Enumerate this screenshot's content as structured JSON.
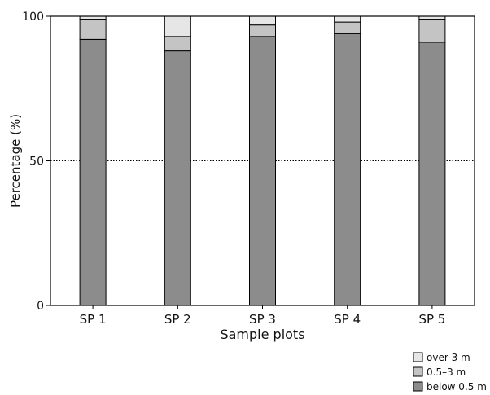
{
  "chart_data": {
    "type": "bar",
    "stacked": true,
    "categories": [
      "SP 1",
      "SP 2",
      "SP 3",
      "SP 4",
      "SP 5"
    ],
    "series": [
      {
        "name": "below 0.5 m",
        "values": [
          92,
          88,
          93,
          94,
          91
        ],
        "color": "#8c8c8c"
      },
      {
        "name": "0.5–3 m",
        "values": [
          7,
          5,
          4,
          4,
          8
        ],
        "color": "#c4c4c4"
      },
      {
        "name": "over 3 m",
        "values": [
          1,
          7,
          3,
          2,
          1
        ],
        "color": "#e6e6e6"
      }
    ],
    "ylim": [
      0,
      100
    ],
    "yticks": [
      "0",
      "50",
      "100"
    ],
    "ylabel": "Percentage (%)",
    "xlabel": "Sample plots",
    "reference_line": 50,
    "grid": false,
    "legend_position": "bottom-right"
  }
}
